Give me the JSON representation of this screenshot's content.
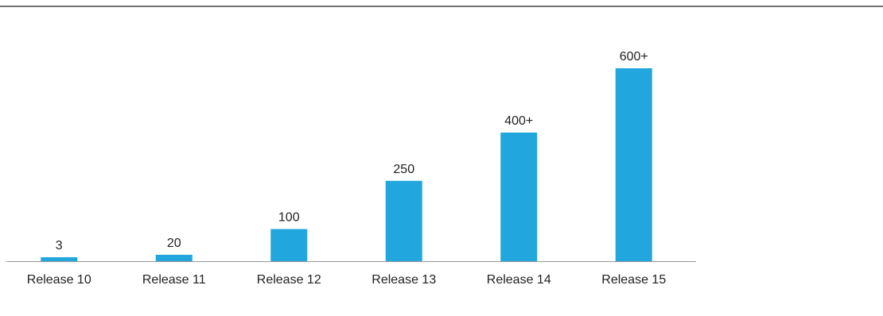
{
  "chart_data": {
    "type": "bar",
    "categories": [
      "Release 10",
      "Release 11",
      "Release 12",
      "Release 13",
      "Release 14",
      "Release 15"
    ],
    "values": [
      3,
      20,
      100,
      250,
      400,
      600
    ],
    "value_labels": [
      "3",
      "20",
      "100",
      "250",
      "400+",
      "600+"
    ],
    "title": "",
    "xlabel": "",
    "ylabel": "",
    "ylim": [
      0,
      680
    ],
    "grid": false,
    "legend": "none",
    "colors": {
      "bar": "#22a6de",
      "axis": "#999999",
      "top_rule": "#444444",
      "text": "#222222"
    }
  }
}
